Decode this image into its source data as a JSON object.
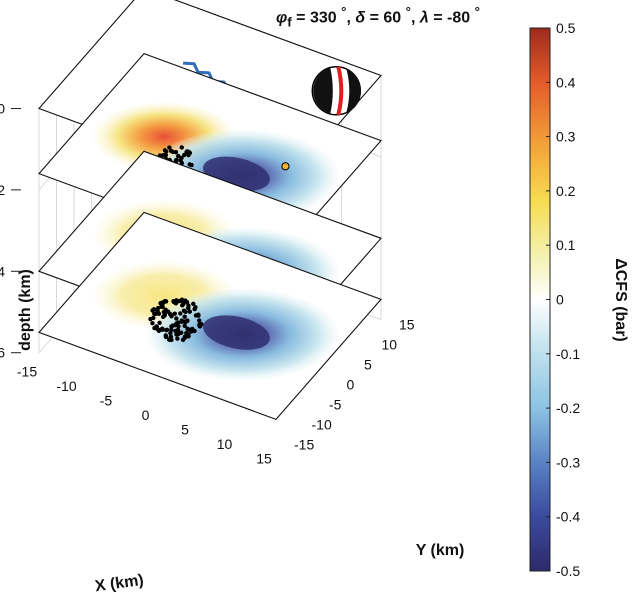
{
  "chart_data": {
    "type": "heatmap",
    "title": "φf = 330°, δ = 60°, λ = -80°",
    "title_parts": {
      "phi_label": "φ",
      "phi_sub": "f",
      "strike": "= 330",
      "dip_label": "δ",
      "dip": "= 60",
      "rake_label": "λ",
      "rake": "= -80",
      "deg": "°",
      "sep": ","
    },
    "xlabel": "X (km)",
    "ylabel": "Y (km)",
    "zlabel": "depth (km)",
    "x_ticks": [
      "-15",
      "-10",
      "-5",
      "0",
      "5",
      "10",
      "15"
    ],
    "y_ticks": [
      "-15",
      "-10",
      "-5",
      "0",
      "5",
      "10",
      "15"
    ],
    "z_ticks": [
      "0",
      "2",
      "4",
      "6"
    ],
    "xlim": [
      -15,
      15
    ],
    "ylim": [
      -15,
      15
    ],
    "zlim": [
      0,
      6
    ],
    "depth_slices": [
      0,
      1.6,
      4,
      5.5
    ],
    "colorbar": {
      "label": "ΔCFS (bar)",
      "ticks": [
        "0.5",
        "0.4",
        "0.3",
        "0.2",
        "0.1",
        "0",
        "-0.1",
        "-0.2",
        "-0.3",
        "-0.4",
        "-0.5"
      ],
      "range": [
        -0.5,
        0.5
      ],
      "colormap": [
        "#2d2a6b",
        "#3b4a9e",
        "#5a82c4",
        "#8cc3e3",
        "#c8e6ef",
        "#ffffff",
        "#f3f1b0",
        "#f7dd52",
        "#f4a53a",
        "#e35b2a",
        "#b3261e"
      ]
    },
    "series": [
      {
        "layer": "surface (0 km)",
        "content": "fault trace",
        "color": "#2f6fb8"
      },
      {
        "layer": "depth slices",
        "content": "ΔCFS contours + aftershocks",
        "color": "#000000"
      }
    ],
    "colors": {
      "positive": "#e8452c",
      "negative": "#3b3c8e",
      "events": "#000000",
      "mainshock_marker": "#f0b030",
      "beachball_red": "#e02020"
    }
  }
}
